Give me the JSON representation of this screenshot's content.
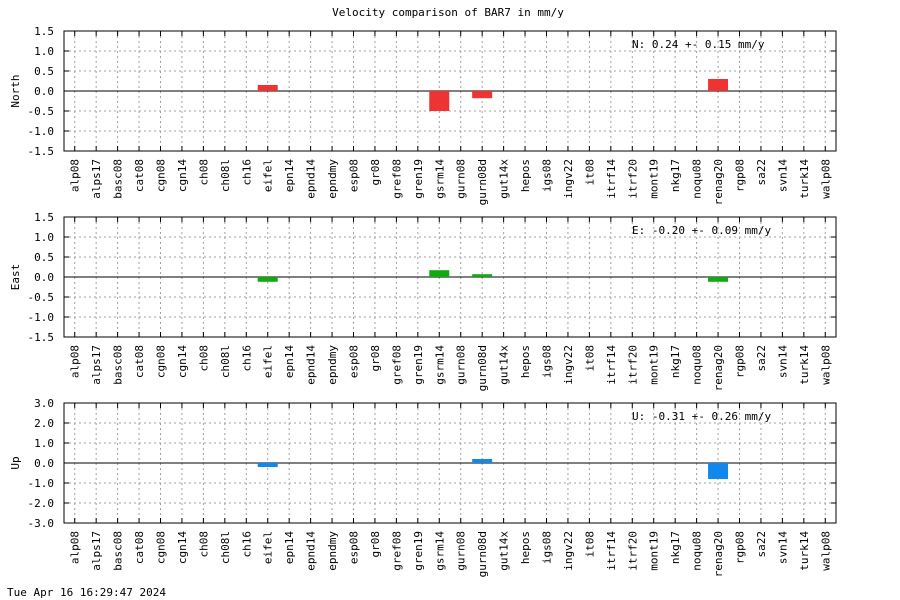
{
  "title": "Velocity comparison of BAR7 in mm/y",
  "timestamp": "Tue Apr 16 16:29:47 2024",
  "chart_data": [
    {
      "type": "bar",
      "ylabel": "North",
      "ylim": [
        -1.5,
        1.5
      ],
      "yticks": [
        "1.5",
        "1.0",
        "0.5",
        "0.0",
        "-0.5",
        "-1.0",
        "-1.5"
      ],
      "grid": true,
      "color": "#ee3333",
      "annotation": "N:   0.24 +-  0.15 mm/y",
      "categories": [
        "alp08",
        "alps17",
        "basc08",
        "cat08",
        "cgn08",
        "cgn14",
        "ch08",
        "ch08l",
        "ch16",
        "eifel",
        "epn14",
        "epnd14",
        "epndmy",
        "esp08",
        "gr08",
        "gref08",
        "gren19",
        "gsrm14",
        "gurn08",
        "gurn08d",
        "gut14x",
        "hepos",
        "igs08",
        "ingv22",
        "it08",
        "itrf14",
        "itrf20",
        "mont19",
        "nkg17",
        "noqu08",
        "renag20",
        "rgp08",
        "sa22",
        "svn14",
        "turk14",
        "walp08"
      ],
      "values": [
        null,
        null,
        null,
        null,
        null,
        null,
        null,
        null,
        null,
        0.15,
        null,
        null,
        null,
        null,
        null,
        null,
        null,
        -0.5,
        null,
        -0.18,
        null,
        null,
        null,
        null,
        null,
        null,
        null,
        null,
        null,
        null,
        0.3,
        null,
        null,
        null,
        null,
        null
      ]
    },
    {
      "type": "bar",
      "ylabel": "East",
      "ylim": [
        -1.5,
        1.5
      ],
      "yticks": [
        "1.5",
        "1.0",
        "0.5",
        "0.0",
        "-0.5",
        "-1.0",
        "-1.5"
      ],
      "grid": true,
      "color": "#11aa11",
      "annotation": "E:  -0.20 +-  0.09 mm/y",
      "categories": [
        "alp08",
        "alps17",
        "basc08",
        "cat08",
        "cgn08",
        "cgn14",
        "ch08",
        "ch08l",
        "ch16",
        "eifel",
        "epn14",
        "epnd14",
        "epndmy",
        "esp08",
        "gr08",
        "gref08",
        "gren19",
        "gsrm14",
        "gurn08",
        "gurn08d",
        "gut14x",
        "hepos",
        "igs08",
        "ingv22",
        "it08",
        "itrf14",
        "itrf20",
        "mont19",
        "nkg17",
        "noqu08",
        "renag20",
        "rgp08",
        "sa22",
        "svn14",
        "turk14",
        "walp08"
      ],
      "values": [
        null,
        null,
        null,
        null,
        null,
        null,
        null,
        null,
        null,
        -0.12,
        null,
        null,
        null,
        null,
        null,
        null,
        null,
        0.17,
        null,
        0.07,
        null,
        null,
        null,
        null,
        null,
        null,
        null,
        null,
        null,
        null,
        -0.12,
        null,
        null,
        null,
        null,
        null
      ]
    },
    {
      "type": "bar",
      "ylabel": "Up",
      "ylim": [
        -3.0,
        3.0
      ],
      "yticks": [
        "3.0",
        "2.0",
        "1.0",
        "0.0",
        "-1.0",
        "-2.0",
        "-3.0"
      ],
      "grid": true,
      "color": "#1188ee",
      "annotation": "U:  -0.31 +-  0.26 mm/y",
      "categories": [
        "alp08",
        "alps17",
        "basc08",
        "cat08",
        "cgn08",
        "cgn14",
        "ch08",
        "ch08l",
        "ch16",
        "eifel",
        "epn14",
        "epnd14",
        "epndmy",
        "esp08",
        "gr08",
        "gref08",
        "gren19",
        "gsrm14",
        "gurn08",
        "gurn08d",
        "gut14x",
        "hepos",
        "igs08",
        "ingv22",
        "it08",
        "itrf14",
        "itrf20",
        "mont19",
        "nkg17",
        "noqu08",
        "renag20",
        "rgp08",
        "sa22",
        "svn14",
        "turk14",
        "walp08"
      ],
      "values": [
        null,
        null,
        null,
        null,
        null,
        null,
        null,
        null,
        null,
        -0.2,
        null,
        null,
        null,
        null,
        null,
        null,
        null,
        null,
        null,
        0.2,
        null,
        null,
        null,
        null,
        null,
        null,
        null,
        null,
        null,
        null,
        -0.8,
        null,
        null,
        null,
        null,
        null
      ]
    }
  ]
}
